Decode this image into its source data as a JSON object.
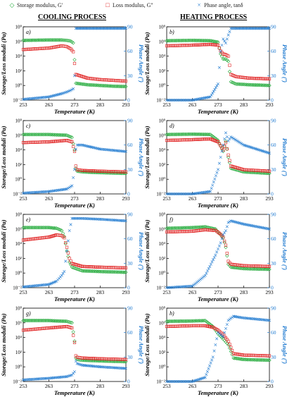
{
  "legend": [
    {
      "label": "Storage modulus, G'",
      "symbol": "◇",
      "color": "#22aa3a"
    },
    {
      "label": "Loss modulus, G''",
      "symbol": "□",
      "color": "#e02020"
    },
    {
      "label": "Phase angle, tanδ",
      "symbol": "×",
      "color": "#1f7ad0"
    }
  ],
  "columns": [
    "COOLING PROCESS",
    "HEATING PROCESS"
  ],
  "axes": {
    "xlabel": "Temperature (K)",
    "ylabel_left": "Storage/Loss moduli (Pa)",
    "ylabel_right": "Phase Angle (º)",
    "x_ticks": [
      "253",
      "263",
      "273",
      "283",
      "293"
    ],
    "y_left_ticks": [
      "10⁻²",
      "10⁰",
      "10²",
      "10⁴",
      "10⁶",
      "10⁸"
    ],
    "y_right_ticks": [
      "0",
      "30",
      "60",
      "90"
    ],
    "xlim": [
      253,
      293
    ],
    "ylim_left_log10": [
      -2,
      8
    ],
    "ylim_right": [
      0,
      90
    ]
  },
  "colors": {
    "storage": "#22aa3a",
    "loss": "#e02020",
    "phase": "#1f7ad0",
    "right_axis": "#1f7ad0"
  },
  "chart_data": [
    {
      "type": "scatter",
      "panel": "a)",
      "x": [
        253,
        263,
        268,
        270,
        271.5,
        272.5,
        273,
        273.5,
        278,
        283,
        288,
        293
      ],
      "series": [
        {
          "name": "Storage modulus, G'",
          "y_log10": [
            6.15,
            6.2,
            6.2,
            6.15,
            6.05,
            5.8,
            3.5,
            0.3,
            0.1,
            0.0,
            -0.1,
            -0.15
          ]
        },
        {
          "name": "Loss modulus, G''",
          "y_log10": [
            4.9,
            5.1,
            5.4,
            5.3,
            5.0,
            4.6,
            3.0,
            1.5,
            1.0,
            0.8,
            0.7,
            0.6
          ]
        },
        {
          "name": "Phase angle, tanδ",
          "y_deg": [
            1,
            4,
            8,
            10,
            12,
            14,
            30,
            88,
            88,
            88,
            88,
            88
          ]
        }
      ]
    },
    {
      "type": "scatter",
      "panel": "b)",
      "x": [
        253,
        263,
        270,
        273,
        274,
        275,
        276,
        277,
        278,
        280,
        285,
        293
      ],
      "series": [
        {
          "name": "Storage modulus, G'",
          "y_log10": [
            6.1,
            6.15,
            6.1,
            5.9,
            4.3,
            3.6,
            3.6,
            3.3,
            0.5,
            0.2,
            0.1,
            0.0
          ]
        },
        {
          "name": "Loss modulus, G''",
          "y_log10": [
            5.4,
            5.5,
            5.6,
            5.5,
            4.7,
            4.3,
            4.2,
            4.0,
            1.5,
            1.2,
            1.0,
            0.9
          ]
        },
        {
          "name": "Phase angle, tanδ",
          "y_deg": [
            0,
            0,
            4,
            20,
            60,
            75,
            70,
            80,
            88,
            88,
            88,
            88
          ]
        }
      ]
    },
    {
      "type": "scatter",
      "panel": "c)",
      "x": [
        253,
        263,
        270,
        272,
        273,
        273.5,
        274,
        276,
        283,
        293
      ],
      "series": [
        {
          "name": "Storage modulus, G'",
          "y_log10": [
            6.1,
            6.1,
            6.0,
            5.7,
            4.0,
            1.5,
            1.1,
            1.0,
            0.9,
            0.8
          ],
          "note": ""
        },
        {
          "name": "Loss modulus, G''",
          "y_log10": [
            5.0,
            5.1,
            5.3,
            5.1,
            3.8,
            1.8,
            1.3,
            1.2,
            1.1,
            1.0
          ]
        },
        {
          "name": "Phase angle, tanδ",
          "y_deg": [
            1,
            3,
            6,
            10,
            30,
            55,
            60,
            60,
            55,
            52
          ]
        }
      ]
    },
    {
      "type": "scatter",
      "panel": "d)",
      "x": [
        253,
        263,
        270,
        273,
        275,
        276,
        277,
        278,
        283,
        293
      ],
      "series": [
        {
          "name": "Storage modulus, G'",
          "y_log10": [
            6.1,
            6.15,
            6.1,
            5.3,
            3.8,
            5.2,
            3.0,
            1.5,
            1.0,
            0.8
          ]
        },
        {
          "name": "Loss modulus, G''",
          "y_log10": [
            5.3,
            5.4,
            5.5,
            5.1,
            4.0,
            5.0,
            3.3,
            1.8,
            1.3,
            1.1
          ]
        },
        {
          "name": "Phase angle, tanδ",
          "y_deg": [
            0,
            0,
            3,
            30,
            60,
            75,
            65,
            70,
            60,
            50
          ]
        }
      ]
    },
    {
      "type": "scatter",
      "panel": "e)",
      "x": [
        253,
        263,
        266,
        268,
        269,
        270,
        271,
        272,
        276,
        283,
        293
      ],
      "series": [
        {
          "name": "Storage modulus, G'",
          "y_log10": [
            6.2,
            6.2,
            6.1,
            5.8,
            5.0,
            3.0,
            1.5,
            0.8,
            0.3,
            0.2,
            0.1
          ]
        },
        {
          "name": "Loss modulus, G''",
          "y_log10": [
            4.5,
            4.9,
            5.2,
            5.1,
            4.8,
            3.5,
            2.0,
            1.3,
            0.9,
            0.8,
            0.7
          ]
        },
        {
          "name": "Phase angle, tanδ",
          "y_deg": [
            1,
            4,
            8,
            15,
            20,
            45,
            70,
            85,
            85,
            84,
            82
          ]
        }
      ]
    },
    {
      "type": "scatter",
      "panel": "f)",
      "x": [
        253,
        263,
        268,
        272,
        274,
        275,
        276,
        277,
        278,
        283,
        293
      ],
      "series": [
        {
          "name": "Storage modulus, G'",
          "y_log10": [
            6.1,
            6.2,
            6.3,
            6.0,
            5.2,
            4.8,
            3.5,
            1.2,
            0.8,
            0.6,
            0.5
          ]
        },
        {
          "name": "Loss modulus, G''",
          "y_log10": [
            5.6,
            5.7,
            5.9,
            5.8,
            5.3,
            4.9,
            3.8,
            1.6,
            1.2,
            1.0,
            0.9
          ]
        },
        {
          "name": "Phase angle, tanδ",
          "y_deg": [
            0,
            2,
            15,
            40,
            55,
            65,
            70,
            80,
            82,
            78,
            72
          ]
        }
      ]
    },
    {
      "type": "scatter",
      "panel": "g)",
      "x": [
        253,
        263,
        270,
        272,
        273,
        273.5,
        274,
        276,
        283,
        293
      ],
      "series": [
        {
          "name": "Storage modulus, G'",
          "y_log10": [
            6.3,
            6.3,
            6.2,
            6.0,
            3.5,
            1.2,
            1.0,
            0.9,
            0.8,
            0.7
          ]
        },
        {
          "name": "Loss modulus, G''",
          "y_log10": [
            5.0,
            5.3,
            5.5,
            5.3,
            3.3,
            1.5,
            1.3,
            1.2,
            1.1,
            1.0
          ]
        },
        {
          "name": "Phase angle, tanδ",
          "y_deg": [
            2,
            4,
            6,
            8,
            12,
            25,
            22,
            20,
            18,
            16
          ]
        }
      ]
    },
    {
      "type": "scatter",
      "panel": "h)",
      "x": [
        253,
        263,
        268,
        271,
        273,
        275,
        277,
        279,
        283,
        293
      ],
      "series": [
        {
          "name": "Storage modulus, G'",
          "y_log10": [
            6.2,
            6.25,
            6.3,
            5.5,
            4.5,
            3.8,
            3.0,
            1.2,
            1.0,
            0.9
          ]
        },
        {
          "name": "Loss modulus, G''",
          "y_log10": [
            5.5,
            5.6,
            5.6,
            5.4,
            5.0,
            4.4,
            3.5,
            1.8,
            1.6,
            1.5
          ]
        },
        {
          "name": "Phase angle, tanδ",
          "y_deg": [
            0,
            0,
            5,
            30,
            60,
            55,
            75,
            80,
            78,
            75
          ]
        }
      ]
    }
  ]
}
